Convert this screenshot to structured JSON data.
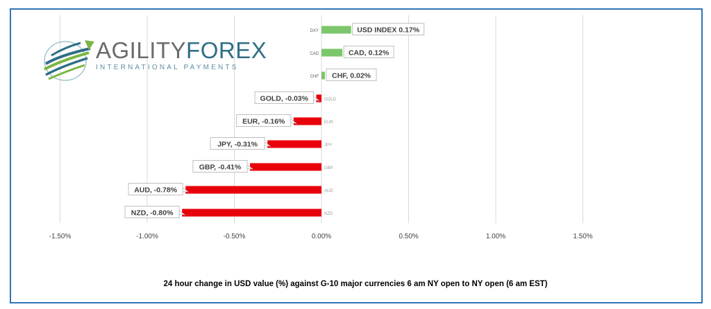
{
  "chart_data": {
    "type": "bar",
    "orientation": "horizontal",
    "categories": [
      "DXY",
      "CAD",
      "CHF",
      "GOLD",
      "EUR",
      "JPY",
      "GBP",
      "AUD",
      "NZD"
    ],
    "values": [
      0.17,
      0.12,
      0.02,
      -0.03,
      -0.16,
      -0.31,
      -0.41,
      -0.78,
      -0.8
    ],
    "data_labels": [
      "USD INDEX 0.17%",
      "CAD, 0.12%",
      "CHF, 0.02%",
      "GOLD, -0.03%",
      "EUR, -0.16%",
      "JPY, -0.31%",
      "GBP, -0.41%",
      "AUD, -0.78%",
      "NZD, -0.80%"
    ],
    "xlim": [
      -1.5,
      1.5
    ],
    "x_ticks": [
      -1.5,
      -1.0,
      -0.5,
      0.0,
      0.5,
      1.0,
      1.5
    ],
    "x_tick_labels": [
      "-1.50%",
      "-1.00%",
      "-0.50%",
      "0.00%",
      "0.50%",
      "1.00%",
      "1.50%"
    ],
    "colors": {
      "positive": "#7cc66b",
      "negative": "#e8000b"
    },
    "grid": "vertical",
    "legend": "none",
    "caption": "24 hour change in  USD value (%)  against  G-10 major currencies  6 am NY open to NY open  (6 am EST)"
  },
  "logo": {
    "brand_part1": "AGILITY",
    "brand_part2": "FOREX",
    "tagline": "INTERNATIONAL PAYMENTS",
    "colors": {
      "grey": "#6b6b6b",
      "teal": "#2f6f86",
      "green": "#7bb642"
    }
  },
  "frame_color": "#2e75b6"
}
